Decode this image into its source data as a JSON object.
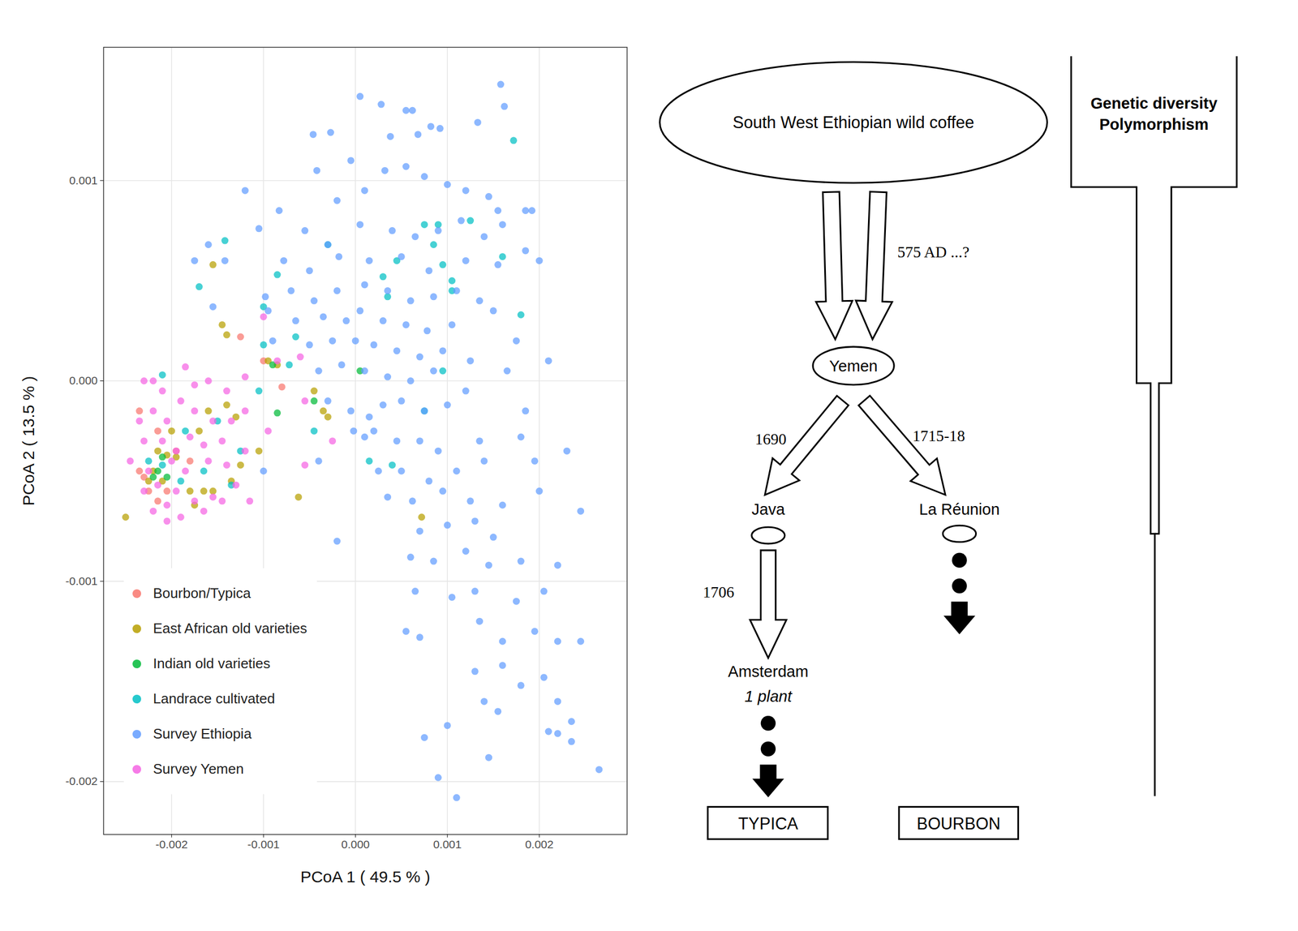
{
  "chart_data": {
    "type": "scatter",
    "x_label": "PCoA 1 ( 49.5 % )",
    "y_label": "PCoA 2 ( 13.5 % )",
    "xlim": [
      -0.00274,
      0.002955
    ],
    "ylim": [
      -0.002264,
      0.001665
    ],
    "xticks": [
      -0.002,
      -0.001,
      {
        "value": 0,
        "label": "0.000"
      },
      0.001,
      0.002
    ],
    "yticks": [
      -0.002,
      -0.001,
      {
        "value": 0,
        "label": "0.000"
      },
      0.001
    ],
    "grid": true,
    "legend": "bottom-left",
    "marker": "circle",
    "series": [
      {
        "name": "Bourbon/Typica",
        "color": "#F8766D",
        "x": [
          -0.00125,
          -0.001,
          -0.0008,
          -0.00235,
          -0.00235,
          -0.00225,
          -0.00215,
          -0.00205,
          -0.00195,
          -0.0023,
          -0.00215,
          -0.0018
        ],
        "values": [
          0.00022,
          0.0001,
          -3e-05,
          -0.00015,
          -0.00045,
          -0.00055,
          -0.0006,
          -0.00055,
          -0.00035,
          -0.00048,
          -0.00025,
          -0.0004
        ]
      },
      {
        "name": "East African old varieties",
        "color": "#B79F00",
        "x": [
          -0.0025,
          -0.00155,
          -0.00145,
          -0.0014,
          -0.00215,
          -0.00205,
          -0.00195,
          -0.0018,
          -0.00165,
          -0.00155,
          -0.00135,
          -0.00125,
          -0.00105,
          -0.0014,
          -0.0013,
          -0.0022,
          -0.002,
          -0.0017,
          -0.00062,
          0.00072,
          -0.00085,
          -0.00095,
          -0.00045,
          -0.00035,
          -0.0003,
          -0.00175,
          -0.0021,
          -0.0016,
          -0.00225
        ],
        "values": [
          -0.00068,
          0.00058,
          0.00028,
          0.00023,
          -0.00035,
          -0.00037,
          -0.00038,
          -0.00055,
          -0.00055,
          -0.00055,
          -0.0005,
          -0.00042,
          -0.00035,
          -0.00012,
          -0.00018,
          -0.00045,
          -0.00025,
          -0.00025,
          -0.00058,
          -0.00068,
          8e-05,
          0.0001,
          -5e-05,
          -0.00015,
          -0.00018,
          -0.00062,
          -0.0005,
          -0.00015,
          -0.0005
        ]
      },
      {
        "name": "Indian old varieties",
        "color": "#00BA38",
        "x": [
          -0.00215,
          -0.0021,
          -0.00205,
          -0.0022,
          -0.00085,
          -0.0009,
          -0.00045,
          5e-05
        ],
        "values": [
          -0.00045,
          -0.00038,
          -0.00048,
          -0.00048,
          -0.00016,
          8e-05,
          -0.0001,
          5e-05
        ]
      },
      {
        "name": "Landrace cultivated",
        "color": "#00BFC4",
        "x": [
          0.00172,
          0.00125,
          0.0009,
          0.0016,
          0.00085,
          0.00095,
          0.00045,
          0.0003,
          0.00105,
          0.00105,
          0.0018,
          0.00035,
          -0.0003,
          -0.00142,
          -0.0017,
          -0.00085,
          -0.001,
          -0.00065,
          -0.001,
          -0.00072,
          -0.00105,
          -0.00125,
          -0.0015,
          -0.00165,
          -0.00185,
          -0.0021,
          -0.0021,
          -0.00225,
          -0.0019,
          -0.00135,
          0.00015,
          0.0004,
          -0.00045,
          0.00075,
          0.00095,
          0.00075
        ],
        "values": [
          0.0012,
          0.0008,
          0.00078,
          0.00062,
          0.00068,
          0.00058,
          0.0006,
          0.00052,
          0.0005,
          0.00045,
          0.00033,
          0.00042,
          0.00068,
          0.0007,
          0.00047,
          0.00053,
          0.00037,
          0.00022,
          0.00018,
          8e-05,
          -5e-05,
          -0.00035,
          -0.0002,
          -0.00045,
          -0.00025,
          3e-05,
          -0.00042,
          -0.0004,
          -0.0005,
          -0.00052,
          -0.0004,
          -0.00042,
          -0.00025,
          -0.00015,
          5e-05,
          0.00078
        ]
      },
      {
        "name": "Survey Ethiopia",
        "color": "#619CFF",
        "x": [
          5e-05,
          0.00028,
          0.00055,
          0.00062,
          0.00158,
          0.00162,
          0.00133,
          0.00082,
          0.00068,
          0.00038,
          0.00092,
          -0.00046,
          -0.00027,
          -5e-05,
          0.00032,
          0.00055,
          0.00075,
          0.001,
          0.0012,
          0.00145,
          0.00155,
          0.00185,
          0.00192,
          -0.0012,
          -0.00042,
          -0.0002,
          0.0001,
          -0.00083,
          -0.00055,
          -0.0003,
          5e-05,
          0.0004,
          0.00065,
          0.0009,
          0.00115,
          0.0014,
          0.0016,
          -0.0016,
          -0.00142,
          -0.00175,
          -0.00105,
          -0.00078,
          -0.0005,
          -0.00018,
          0.00015,
          0.0005,
          0.0008,
          0.0012,
          0.00155,
          0.002,
          0.00185,
          -0.00098,
          -0.0007,
          -0.00045,
          -0.0002,
          0.0001,
          0.00035,
          0.0006,
          0.00085,
          0.0011,
          0.00135,
          -0.00155,
          -0.00095,
          -0.00065,
          -0.00035,
          -0.0001,
          5e-05,
          0.0003,
          0.00055,
          0.00078,
          0.00105,
          0.0015,
          -0.0005,
          -0.00025,
          0,
          0.0002,
          0.00045,
          0.0007,
          0.00095,
          0.00125,
          0.00175,
          0.0021,
          -0.0009,
          -0.0004,
          -0.00015,
          0.0001,
          0.00035,
          0.0006,
          0.00085,
          0.0012,
          0.00165,
          -0.0003,
          -5e-05,
          0.00015,
          0.0003,
          0.0005,
          0.00075,
          0.001,
          0.00185,
          -2e-05,
          0.0001,
          0.0002,
          0.00045,
          0.0007,
          0.0009,
          0.00135,
          0.0018,
          -0.001,
          -0.0004,
          0.00025,
          0.0005,
          0.0008,
          0.0011,
          0.0014,
          0.00195,
          0.0023,
          -0.0002,
          0.00035,
          0.00062,
          0.00095,
          0.00125,
          0.0016,
          0.002,
          0.0007,
          0.001,
          0.0013,
          0.0015,
          0.00245,
          0.0006,
          0.00085,
          0.0012,
          0.00145,
          0.0018,
          0.0022,
          0.00065,
          0.00105,
          0.0013,
          0.00175,
          0.00205,
          0.00055,
          0.0007,
          0.00135,
          0.0016,
          0.00195,
          0.0022,
          0.00245,
          0.0013,
          0.0016,
          0.0018,
          0.00205,
          0.0014,
          0.00155,
          0.0022,
          0.0021,
          0.00235,
          0.00075,
          0.001,
          0.00145,
          0.0009,
          0.0011,
          0.00265,
          0.00235,
          0.0022
        ],
        "values": [
          0.00142,
          0.00138,
          0.00135,
          0.00135,
          0.00148,
          0.00137,
          0.00129,
          0.00127,
          0.00123,
          0.00122,
          0.00126,
          0.00123,
          0.00124,
          0.0011,
          0.00105,
          0.00107,
          0.00102,
          0.00098,
          0.00095,
          0.00092,
          0.00085,
          0.00085,
          0.00085,
          0.00095,
          0.00105,
          0.0009,
          0.00095,
          0.00085,
          0.00075,
          0.00068,
          0.00078,
          0.00075,
          0.00072,
          0.00075,
          0.0008,
          0.00072,
          0.00078,
          0.00068,
          0.0006,
          0.0006,
          0.00076,
          0.0006,
          0.00055,
          0.00062,
          0.0006,
          0.00062,
          0.00055,
          0.0006,
          0.00058,
          0.0006,
          0.00065,
          0.00042,
          0.00045,
          0.0004,
          0.00045,
          0.00048,
          0.00045,
          0.0004,
          0.00042,
          0.00045,
          0.0004,
          0.00037,
          0.00035,
          0.0003,
          0.00032,
          0.0003,
          0.00035,
          0.0003,
          0.00028,
          0.00025,
          0.00028,
          0.00035,
          0.00018,
          0.0002,
          0.0002,
          0.00018,
          0.00015,
          0.00012,
          0.00015,
          0.0001,
          0.0002,
          0.0001,
          0.0002,
          5e-05,
          8e-05,
          5e-05,
          2e-05,
          0,
          5e-05,
          -5e-05,
          5e-05,
          -0.0001,
          -0.00015,
          -0.00018,
          -0.00012,
          -0.0001,
          -0.00015,
          -0.00012,
          -0.00015,
          -0.00025,
          -0.00028,
          -0.00025,
          -0.0003,
          -0.0003,
          -0.00035,
          -0.0003,
          -0.00028,
          -0.00045,
          -0.0004,
          -0.00045,
          -0.00045,
          -0.0005,
          -0.00045,
          -0.0004,
          -0.0004,
          -0.00035,
          -0.0008,
          -0.00058,
          -0.0006,
          -0.00055,
          -0.0006,
          -0.00062,
          -0.00055,
          -0.00075,
          -0.00072,
          -0.0007,
          -0.00078,
          -0.00065,
          -0.00088,
          -0.0009,
          -0.00085,
          -0.00092,
          -0.0009,
          -0.00092,
          -0.00105,
          -0.00108,
          -0.00105,
          -0.0011,
          -0.00105,
          -0.00125,
          -0.00128,
          -0.0012,
          -0.0013,
          -0.00125,
          -0.0013,
          -0.0013,
          -0.00145,
          -0.00142,
          -0.00152,
          -0.00148,
          -0.0016,
          -0.00165,
          -0.0016,
          -0.00175,
          -0.0018,
          -0.00178,
          -0.00172,
          -0.00188,
          -0.00198,
          -0.00208,
          -0.00194,
          -0.0017,
          -0.00176
        ]
      },
      {
        "name": "Survey Yemen",
        "color": "#F564E3",
        "x": [
          -0.0023,
          -0.0022,
          -0.0021,
          -0.00185,
          -0.00175,
          -0.0016,
          -0.0014,
          -0.00235,
          -0.0022,
          -0.00205,
          -0.0019,
          -0.00175,
          -0.00155,
          -0.00135,
          -0.0023,
          -0.0021,
          -0.00195,
          -0.0018,
          -0.00165,
          -0.00145,
          -0.00245,
          -0.00225,
          -0.002,
          -0.00185,
          -0.0016,
          -0.0014,
          -0.0012,
          -0.0023,
          -0.00215,
          -0.00195,
          -0.00175,
          -0.00155,
          -0.0013,
          -0.00115,
          -0.0022,
          -0.00205,
          -0.0019,
          -0.00165,
          -0.00145,
          -0.00205,
          -0.001,
          -0.00085,
          -0.0006,
          -0.0012,
          -0.00055,
          -0.00055,
          -0.00025,
          -0.00095,
          -0.0012
        ],
        "values": [
          0,
          0,
          -5e-05,
          7e-05,
          -2e-05,
          0,
          -5e-05,
          -0.0002,
          -0.00015,
          -0.0002,
          -0.0001,
          -0.00015,
          -0.0002,
          -0.0002,
          -0.0003,
          -0.0003,
          -0.00035,
          -0.00028,
          -0.00032,
          -0.0003,
          -0.0004,
          -0.00045,
          -0.0004,
          -0.00045,
          -0.0004,
          -0.00042,
          -0.00035,
          -0.00055,
          -0.00052,
          -0.00055,
          -0.0006,
          -0.00058,
          -0.00052,
          -0.0006,
          -0.00065,
          -0.00062,
          -0.00068,
          -0.00065,
          -0.0006,
          -0.0007,
          0.00032,
          0.0001,
          0.00012,
          2e-05,
          -0.0001,
          -0.00042,
          -0.0003,
          -0.00025,
          -0.00015
        ]
      }
    ]
  },
  "diagram": {
    "origin": "South West Ethiopian wild coffee",
    "origin_to_hub": "575 AD ...?",
    "hub": "Yemen",
    "branches": [
      {
        "date": "1690",
        "place": "Java",
        "next": {
          "date": "1706",
          "place": "Amsterdam",
          "note": "1 plant"
        },
        "result": "TYPICA"
      },
      {
        "date": "1715-18",
        "place": "La Réunion",
        "result": "BOURBON"
      }
    ],
    "diversity_bar": [
      "Genetic diversity",
      "Polymorphism"
    ]
  }
}
